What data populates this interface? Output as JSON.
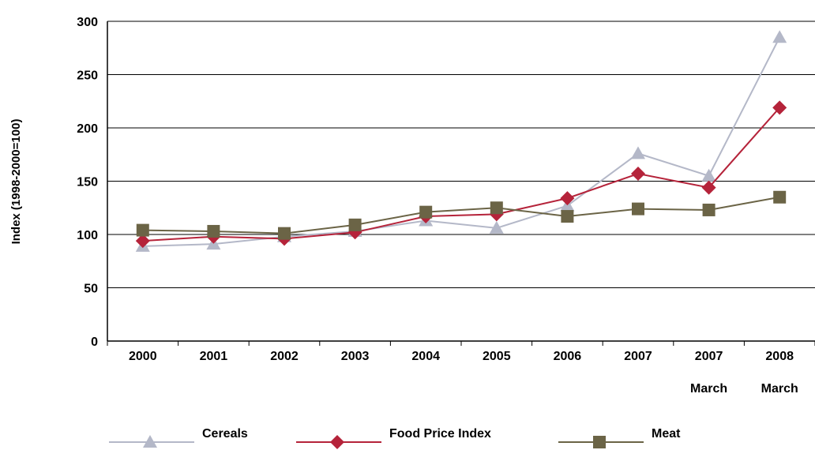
{
  "chart_data": {
    "type": "line",
    "title": "",
    "ylabel": "Index (1998-2000=100)",
    "xlabel": "",
    "ylim": [
      0,
      300
    ],
    "yticks": [
      0,
      50,
      100,
      150,
      200,
      250,
      300
    ],
    "grid": "horizontal",
    "legend_position": "bottom",
    "categories": [
      {
        "line1": "2000",
        "line2": ""
      },
      {
        "line1": "2001",
        "line2": ""
      },
      {
        "line1": "2002",
        "line2": ""
      },
      {
        "line1": "2003",
        "line2": ""
      },
      {
        "line1": "2004",
        "line2": ""
      },
      {
        "line1": "2005",
        "line2": ""
      },
      {
        "line1": "2006",
        "line2": ""
      },
      {
        "line1": "2007",
        "line2": ""
      },
      {
        "line1": "2007",
        "line2": "March"
      },
      {
        "line1": "2008",
        "line2": "March"
      }
    ],
    "series": [
      {
        "name": "Cereals",
        "color": "#b4b8c8",
        "marker": "triangle",
        "values": [
          89,
          91,
          98,
          103,
          113,
          106,
          127,
          176,
          155,
          285
        ]
      },
      {
        "name": "Food Price Index",
        "color": "#b5233a",
        "marker": "diamond",
        "values": [
          94,
          98,
          96,
          102,
          117,
          119,
          134,
          157,
          144,
          219
        ]
      },
      {
        "name": "Meat",
        "color": "#6b6446",
        "marker": "square",
        "values": [
          104,
          103,
          101,
          109,
          121,
          125,
          117,
          124,
          123,
          135
        ]
      }
    ]
  }
}
